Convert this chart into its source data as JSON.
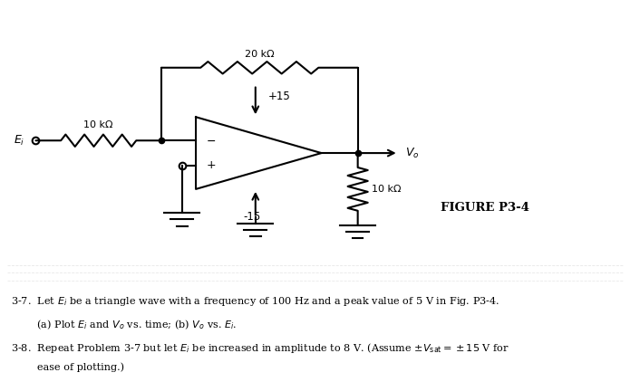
{
  "fig_width": 7.06,
  "fig_height": 4.22,
  "dpi": 100,
  "bg_color": "#ffffff",
  "line_color": "#000000",
  "r1_label": "10 kΩ",
  "r2_label": "20 kΩ",
  "r3_label": "10 kΩ",
  "vplus_label": "+15",
  "vminus_label": "-15",
  "figure_label": "FIGURE P3-4",
  "text_37": "3-7.  Let $E_i$ be a triangle wave with a frequency of 100 Hz and a peak value of 5 V in Fig. P3-4.",
  "text_37b": "        (a) Plot $E_i$ and $V_o$ vs. time; (b) $V_o$ vs. $E_i$.",
  "text_38": "3-8.  Repeat Problem 3-7 but let $E_i$ be increased in amplitude to 8 V. (Assume $\\pm V_{\\mathrm{sat}} = \\pm 15$ V for",
  "text_38b": "        ease of plotting.)"
}
